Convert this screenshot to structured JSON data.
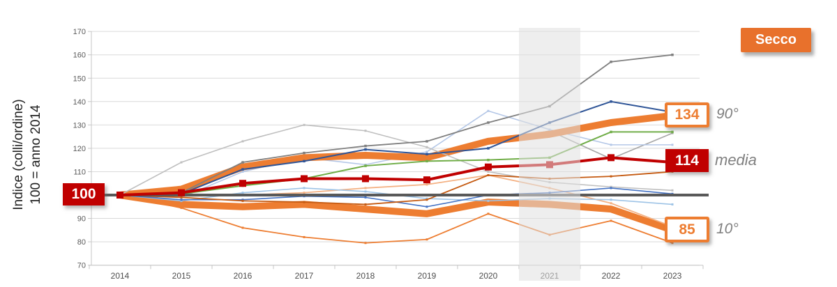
{
  "y_axis": {
    "title_line1": "Indice (colli/ordine)",
    "title_line2": "100 = anno 2014",
    "tick_labels": [
      "170",
      "160",
      "150",
      "140",
      "130",
      "120",
      "110",
      "100",
      "90",
      "80",
      "70"
    ],
    "min": 70,
    "max": 170,
    "step": 10
  },
  "x_axis": {
    "year_labels": [
      "2014",
      "2015",
      "2016",
      "2017",
      "2018",
      "2019",
      "2020",
      "2021",
      "2022",
      "2023"
    ],
    "highlighted_year": "2021"
  },
  "badge": {
    "label": "Secco",
    "bg_color": "#E8712C"
  },
  "annotations": {
    "start_value": {
      "label": "100"
    },
    "p90": {
      "label": "134",
      "suffix": "90°"
    },
    "media": {
      "label": "114",
      "suffix": "media"
    },
    "p10": {
      "label": "85",
      "suffix": "10°"
    }
  },
  "colors": {
    "accent_orange": "#ED7D31",
    "accent_red": "#C00000",
    "reference_gray": "#595959",
    "grid": "#D9D9D9"
  },
  "chart_data": {
    "type": "line",
    "x": [
      2014,
      2015,
      2016,
      2017,
      2018,
      2019,
      2020,
      2021,
      2022,
      2023
    ],
    "ylim": [
      70,
      170
    ],
    "grid": true,
    "legend_position": "none",
    "highlight_band_x": [
      2020.5,
      2021.5
    ],
    "series": [
      {
        "name": "competitor-gray-warm",
        "color": "#A6A6A6",
        "width": 1.6,
        "marker": 3,
        "role": "line",
        "values": [
          100,
          101.5,
          112,
          116,
          117,
          116,
          122,
          127.5,
          115.5,
          126.5
        ]
      },
      {
        "name": "competitor-blue-pale",
        "color": "#B4C7E7",
        "width": 1.6,
        "marker": 3,
        "role": "line",
        "values": [
          100,
          99,
          110,
          116,
          113,
          118.5,
          136,
          128,
          121.5,
          121.5
        ]
      },
      {
        "name": "percentile-90",
        "color": "#ED7D31",
        "width": 10,
        "marker": 0,
        "role": "band",
        "values": [
          100,
          102.5,
          112,
          116,
          117,
          116,
          123,
          126,
          131,
          134
        ]
      },
      {
        "name": "percentile-10",
        "color": "#ED7D31",
        "width": 10,
        "marker": 0,
        "role": "band",
        "values": [
          100,
          96,
          95,
          96,
          94,
          92,
          97,
          96,
          94,
          85
        ]
      },
      {
        "name": "competitor-salmon",
        "color": "#F4B183",
        "width": 1.8,
        "marker": 3,
        "role": "line",
        "values": [
          100,
          99.5,
          100,
          101,
          103,
          104.5,
          108.5,
          103,
          96.5,
          86.5
        ]
      },
      {
        "name": "competitor-gray-light",
        "color": "#BFBFBF",
        "width": 1.6,
        "marker": 3,
        "role": "line",
        "values": [
          100,
          114,
          123,
          130,
          127.5,
          120.5,
          110,
          105.5,
          103.5,
          102
        ]
      },
      {
        "name": "competitor-gray-dark",
        "color": "#7F7F7F",
        "width": 1.8,
        "marker": 3.5,
        "role": "line",
        "values": [
          100,
          101,
          114,
          118,
          121,
          123,
          131,
          138,
          157,
          160
        ]
      },
      {
        "name": "competitor-blue-light",
        "color": "#9DC3E6",
        "width": 1.6,
        "marker": 3,
        "role": "line",
        "values": [
          100,
          97.5,
          101,
          103,
          101.5,
          98.5,
          97.5,
          98.5,
          98,
          96
        ]
      },
      {
        "name": "competitor-blue-medium",
        "color": "#4472C4",
        "width": 1.6,
        "marker": 3,
        "role": "line",
        "values": [
          100,
          98,
          98,
          99.5,
          99,
          95,
          100,
          101,
          103,
          100.5
        ]
      },
      {
        "name": "competitor-blue-dark",
        "color": "#2F5597",
        "width": 2,
        "marker": 3.5,
        "role": "line",
        "values": [
          100,
          100.5,
          111,
          114.5,
          119.5,
          117.5,
          120,
          131,
          140,
          135.5
        ]
      },
      {
        "name": "competitor-green",
        "color": "#70AD47",
        "width": 2,
        "marker": 3.5,
        "role": "line",
        "values": [
          100,
          100.5,
          104,
          107,
          112.5,
          114.5,
          115,
          116,
          127,
          127
        ]
      },
      {
        "name": "competitor-orange",
        "color": "#ED7D31",
        "width": 1.8,
        "marker": 3,
        "role": "line",
        "values": [
          100,
          94.5,
          86,
          82,
          79.5,
          81,
          92,
          83,
          89,
          79.5
        ]
      },
      {
        "name": "competitor-brown",
        "color": "#C55A11",
        "width": 1.8,
        "marker": 3,
        "role": "line",
        "values": [
          100,
          99,
          97.5,
          97,
          96,
          98,
          108.5,
          107,
          108,
          110
        ]
      },
      {
        "name": "riferimento-100",
        "color": "#595959",
        "width": 4,
        "marker": 0,
        "role": "reference",
        "values": [
          100,
          100,
          100,
          100,
          100,
          100,
          100,
          100,
          100,
          100
        ]
      },
      {
        "name": "media",
        "color": "#C00000",
        "width": 4,
        "marker": 10,
        "role": "media",
        "values": [
          100,
          101,
          105,
          107,
          107,
          106.5,
          112,
          113,
          116,
          114
        ]
      }
    ]
  }
}
